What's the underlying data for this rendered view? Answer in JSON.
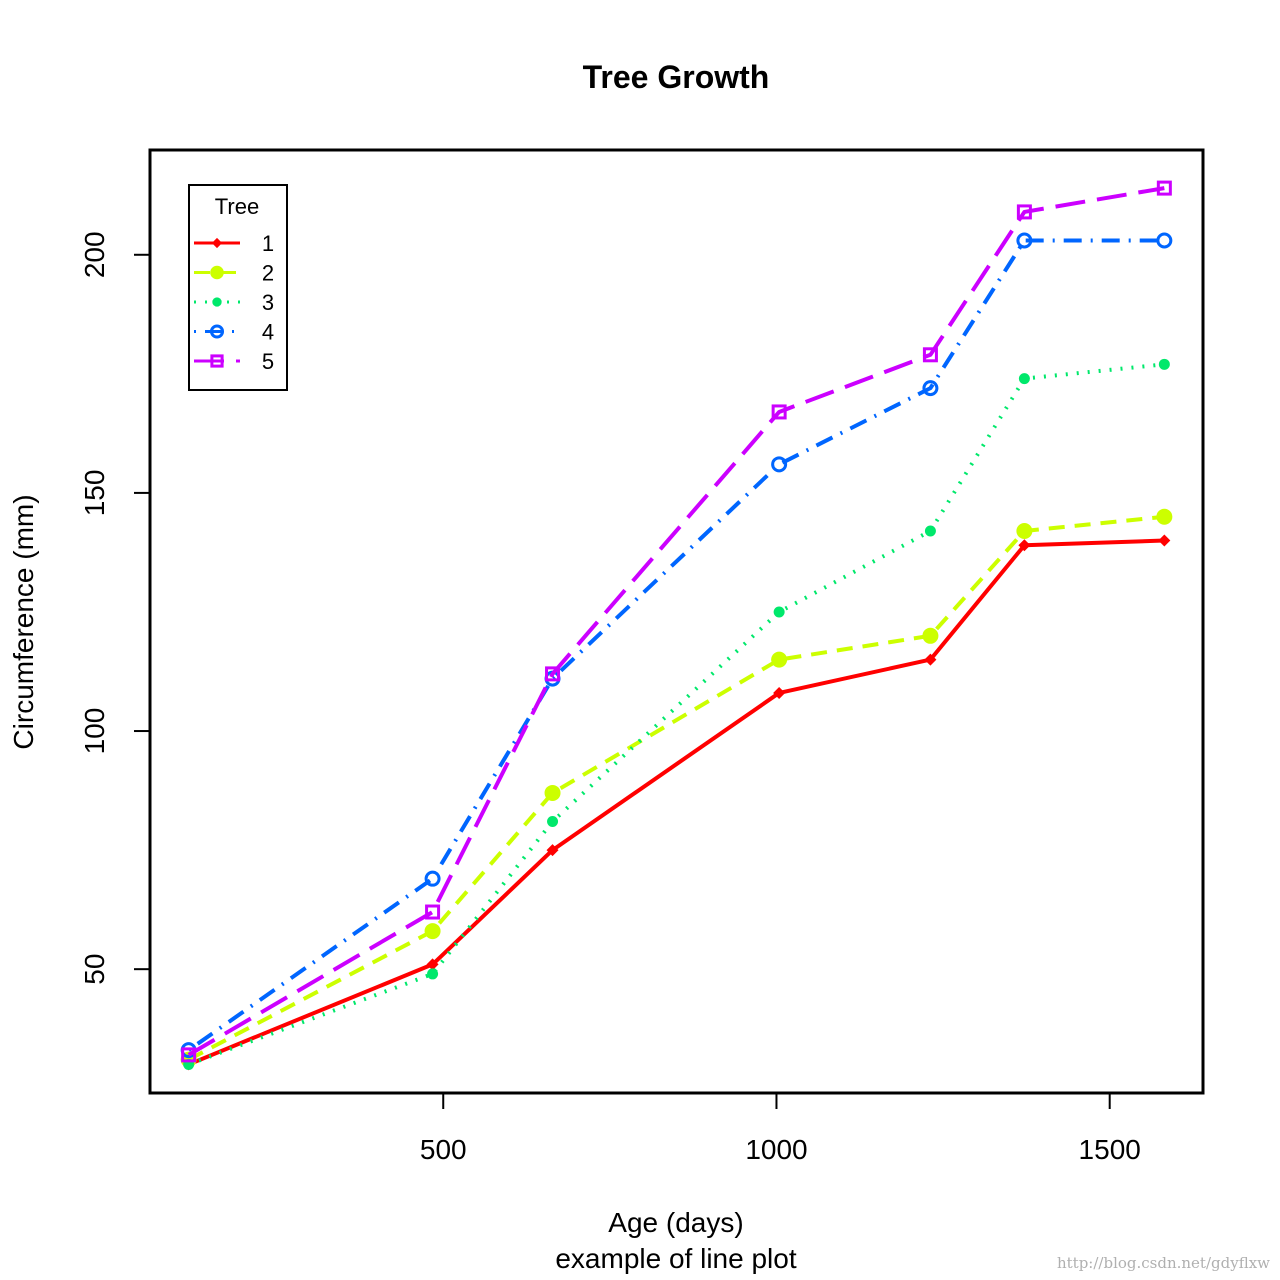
{
  "chart_data": {
    "type": "line",
    "title": "Tree Growth",
    "xlabel": "Age (days)",
    "subtitle": "example of line plot",
    "ylabel": "Circumference (mm)",
    "x": [
      118,
      484,
      664,
      1004,
      1231,
      1372,
      1582
    ],
    "xlim": [
      60,
      1640
    ],
    "ylim": [
      24,
      222
    ],
    "xticks": [
      500,
      1000,
      1500
    ],
    "yticks": [
      50,
      100,
      150,
      200
    ],
    "grid": false,
    "legend": {
      "title": "Tree",
      "position": "top-left"
    },
    "series": [
      {
        "name": "1",
        "color": "#ff0000",
        "line_style": "solid",
        "marker": "diamond",
        "values": [
          30,
          51,
          75,
          108,
          115,
          139,
          140
        ]
      },
      {
        "name": "2",
        "color": "#ccff00",
        "line_style": "dashed",
        "marker": "large-dot",
        "values": [
          31,
          58,
          87,
          115,
          120,
          142,
          145
        ]
      },
      {
        "name": "3",
        "color": "#00e86b",
        "line_style": "dotted",
        "marker": "dot",
        "values": [
          30,
          49,
          81,
          125,
          142,
          174,
          177
        ]
      },
      {
        "name": "4",
        "color": "#0066ff",
        "line_style": "dotdash",
        "marker": "open-circle",
        "values": [
          33,
          69,
          111,
          156,
          172,
          203,
          203
        ]
      },
      {
        "name": "5",
        "color": "#cc00ff",
        "line_style": "longdash",
        "marker": "open-square",
        "values": [
          32,
          62,
          112,
          167,
          179,
          209,
          214
        ]
      }
    ]
  },
  "watermark": "http://blog.csdn.net/gdyflxw"
}
